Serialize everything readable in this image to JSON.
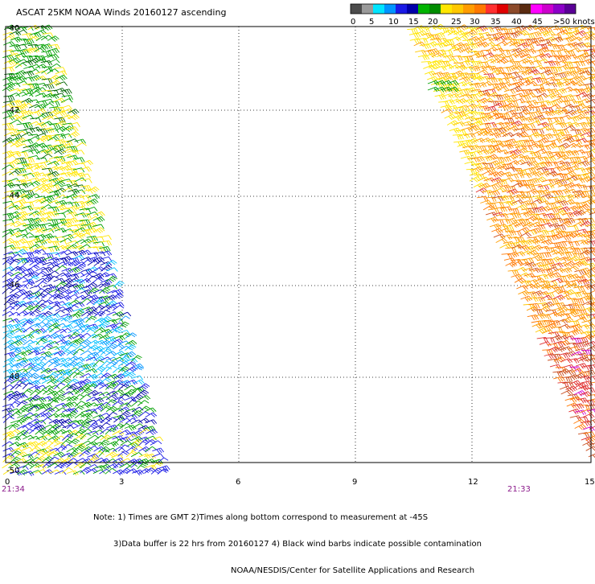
{
  "title": "ASCAT 25KM NOAA Winds 20160127 ascending",
  "legend": {
    "colors": [
      "#4c4c4c",
      "#9a9a9a",
      "#00e5ff",
      "#0094ff",
      "#1a1ae6",
      "#0000aa",
      "#00b400",
      "#008c00",
      "#ffe600",
      "#ffc800",
      "#ff9c00",
      "#ff7800",
      "#ff3030",
      "#e00000",
      "#8c4a2a",
      "#5a2a10",
      "#ff00ff",
      "#cc00cc",
      "#8c00c8",
      "#5a0096"
    ],
    "labels": [
      "0",
      "5",
      "10",
      "15",
      "20",
      "25",
      "30",
      "35",
      "40",
      "45",
      ">50 knots"
    ]
  },
  "map": {
    "lat_labels": [
      "-40",
      "-42",
      "-44",
      "-46",
      "-48",
      "-50"
    ],
    "lon_labels": [
      "0",
      "3",
      "6",
      "9",
      "12",
      "15"
    ],
    "pass_times": [
      "21:34",
      "21:33"
    ]
  },
  "notes": [
    "Note: 1) Times are GMT 2)Times along bottom correspond to measurement at -45S",
    "3)Data buffer is 22 hrs from 20160127 4) Black wind barbs indicate possible contamination",
    "NOAA/NESDIS/Center for Satellite Applications and Research"
  ]
}
